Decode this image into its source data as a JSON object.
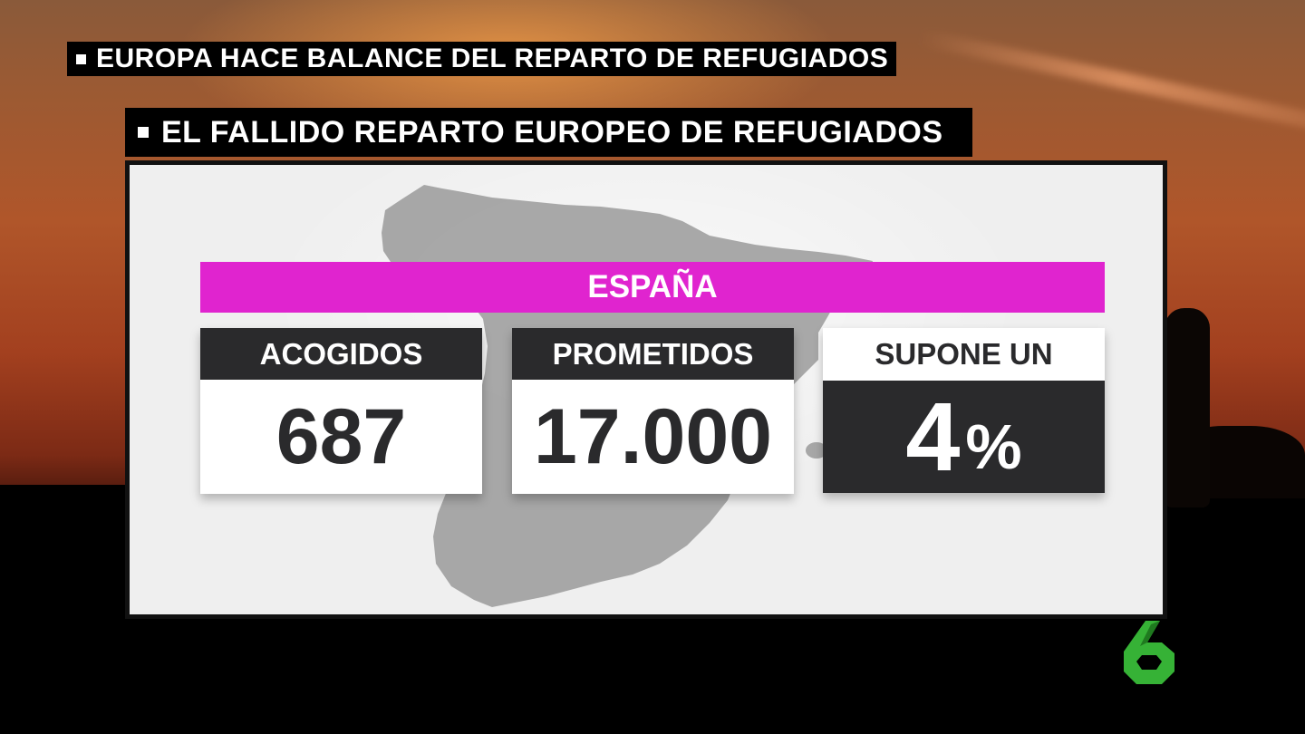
{
  "tickers": {
    "top": "EUROPA HACE BALANCE DEL REPARTO DE REFUGIADOS",
    "second": "EL FALLIDO REPARTO EUROPEO DE REFUGIADOS"
  },
  "panel": {
    "country": "ESPAÑA",
    "cards": {
      "acogidos": {
        "label": "ACOGIDOS",
        "value": "687"
      },
      "prometidos": {
        "label": "PROMETIDOS",
        "value": "17.000"
      },
      "supone": {
        "label": "SUPONE UN",
        "value": "4",
        "unit": "%"
      }
    }
  },
  "colors": {
    "accent_magenta": "#e024cf",
    "card_dark": "#2a2a2c",
    "logo_green": "#36b236"
  },
  "icons": {
    "logo": "channel-la-sexta-logo",
    "map": "spain-map-silhouette"
  }
}
